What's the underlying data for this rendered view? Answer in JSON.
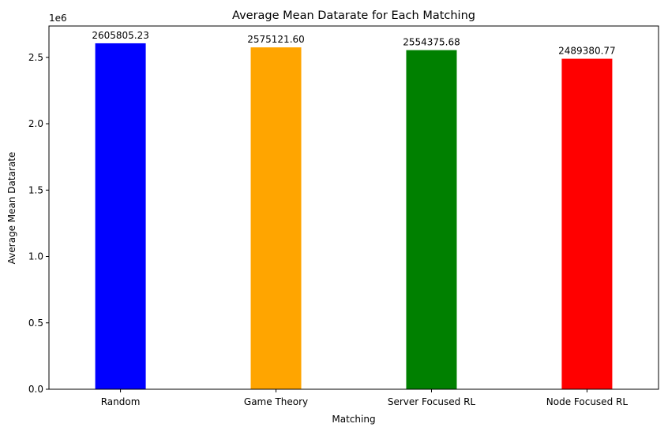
{
  "chart_data": {
    "type": "bar",
    "title": "Average Mean Datarate for Each Matching",
    "xlabel": "Matching",
    "ylabel": "Average Mean Datarate",
    "y_offset_label": "1e6",
    "categories": [
      "Random",
      "Game Theory",
      "Server Focused RL",
      "Node Focused RL"
    ],
    "values": [
      2605805.23,
      2575121.6,
      2554375.68,
      2489380.77
    ],
    "value_labels": [
      "2605805.23",
      "2575121.60",
      "2554375.68",
      "2489380.77"
    ],
    "colors": [
      "#0000ff",
      "#ffa500",
      "#008000",
      "#ff0000"
    ],
    "ylim": [
      0,
      2736095.49
    ],
    "yticks": [
      0,
      500000,
      1000000,
      1500000,
      2000000,
      2500000
    ],
    "ytick_labels": [
      "0.0",
      "0.5",
      "1.0",
      "1.5",
      "2.0",
      "2.5"
    ],
    "grid": false,
    "legend": "none"
  }
}
